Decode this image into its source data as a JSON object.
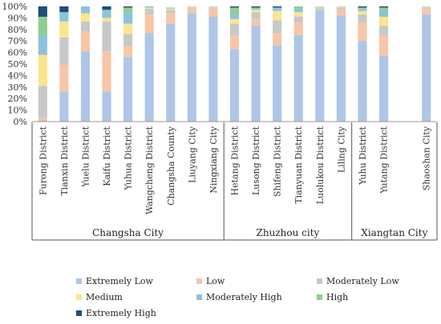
{
  "chart_data": {
    "type": "bar",
    "stacked": true,
    "normalized": true,
    "ylim": [
      0,
      100
    ],
    "yticks": [
      "0%",
      "10%",
      "20%",
      "30%",
      "40%",
      "50%",
      "60%",
      "70%",
      "80%",
      "90%",
      "100%"
    ],
    "categories": [
      "Furong District",
      "Tianxin District",
      "Yuelu District",
      "Kaifu District",
      "Yuhua District",
      "Wangcheng District",
      "Changsha County",
      "Liuyang City",
      "Ningxiang City",
      "Hetang District",
      "Lusong District",
      "Shifeng District",
      "Tianyuan District",
      "Luolukou District",
      "Liling City",
      "Yuhu District",
      "Yutang District",
      "",
      "Shaoshan City"
    ],
    "groups": [
      {
        "name": "Changsha City",
        "count": 9
      },
      {
        "name": "Zhuzhou city",
        "count": 6
      },
      {
        "name": "Xiangtan City",
        "count": 4
      }
    ],
    "series": [
      {
        "name": "Extremely Low",
        "color": "#aec6e8",
        "values": [
          1,
          26,
          61,
          26,
          56,
          77,
          85,
          94,
          91,
          63,
          83,
          66,
          75,
          97,
          92,
          70,
          57,
          0,
          93
        ]
      },
      {
        "name": "Low",
        "color": "#f7c6a8",
        "values": [
          2,
          23,
          17,
          35,
          10,
          16,
          9,
          4,
          7,
          12,
          6,
          11,
          11,
          1,
          5,
          16,
          18,
          0,
          5
        ]
      },
      {
        "name": "Moderately Low",
        "color": "#c8c8c8",
        "values": [
          28,
          24,
          9,
          26,
          10,
          5,
          3,
          1,
          1,
          10,
          6,
          11,
          5,
          1,
          2,
          7,
          8,
          0,
          1
        ]
      },
      {
        "name": "Medium",
        "color": "#fbe58c",
        "values": [
          27,
          14,
          7,
          3,
          9,
          1,
          1,
          0.5,
          0.5,
          4,
          2,
          8,
          4,
          0.5,
          0.5,
          3,
          8,
          0,
          0.5
        ]
      },
      {
        "name": "Moderately High",
        "color": "#8ec1e0",
        "values": [
          17,
          8,
          6,
          6,
          10,
          1,
          0.5,
          0.3,
          0.3,
          4,
          1,
          3,
          3,
          0.2,
          0.2,
          2,
          5,
          0,
          0.2
        ]
      },
      {
        "name": "High",
        "color": "#8fce8e",
        "values": [
          16,
          0,
          0,
          1,
          4,
          0,
          0.5,
          0.1,
          0.1,
          6,
          1,
          0,
          2,
          0.2,
          0.2,
          1,
          3,
          0,
          0.2
        ]
      },
      {
        "name": "Extremely High",
        "color": "#1f4e79",
        "values": [
          9,
          5,
          0,
          3,
          1,
          0,
          0,
          0,
          0,
          1,
          1,
          1,
          0,
          0,
          0,
          1,
          1,
          0,
          0
        ]
      }
    ],
    "legend_position": "bottom",
    "grid": false,
    "title": "",
    "xlabel": "",
    "ylabel": ""
  }
}
